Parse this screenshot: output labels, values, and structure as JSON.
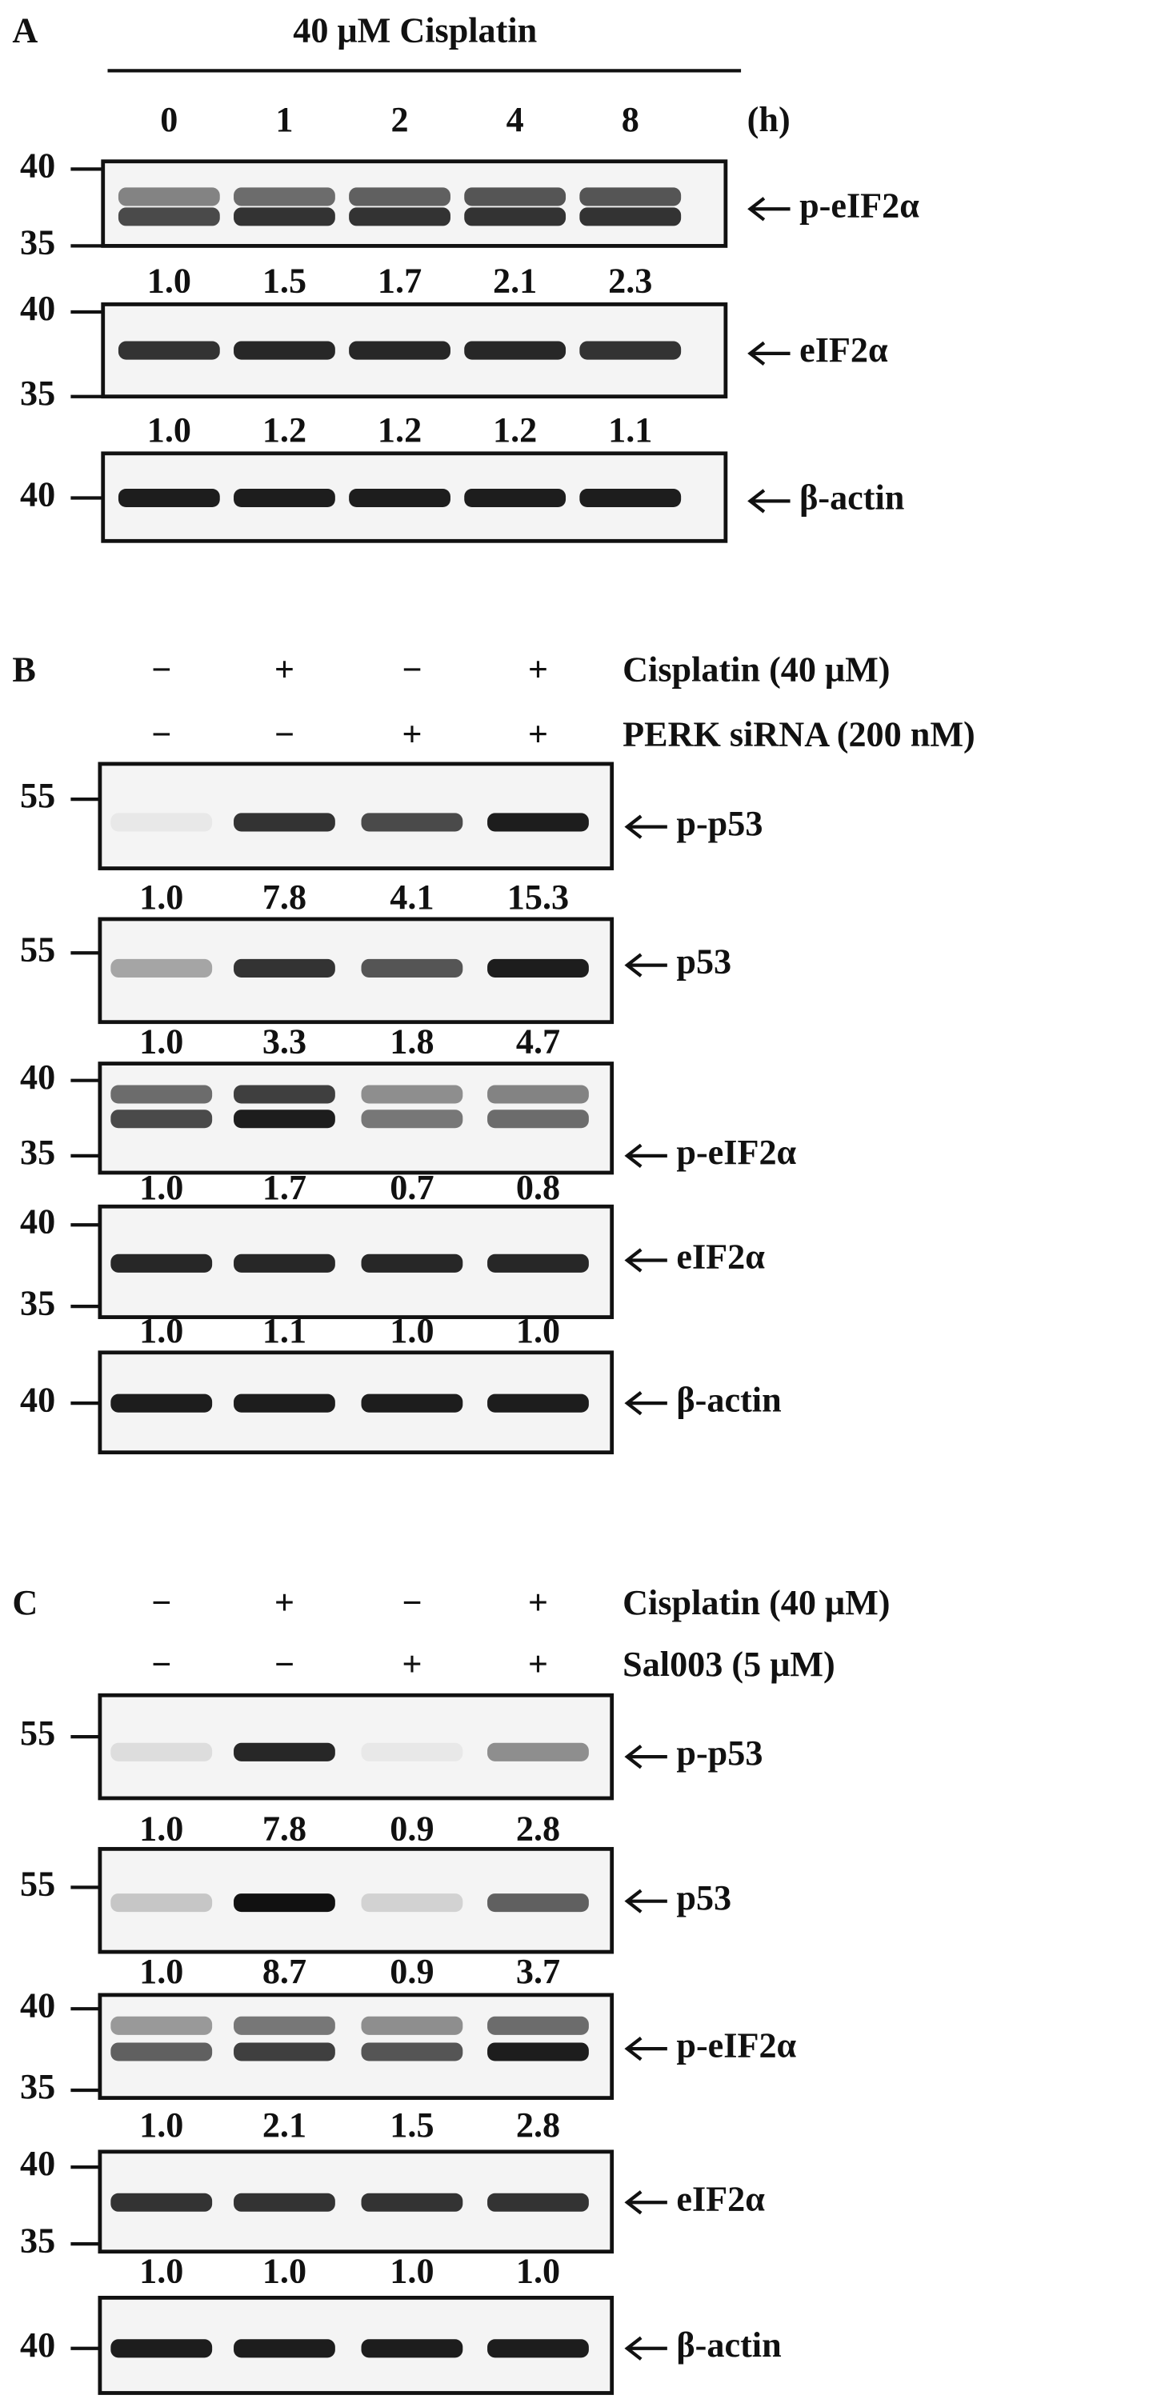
{
  "panels": [
    {
      "label": "A",
      "title": "40 μM Cisplatin",
      "lanes": [
        "0",
        "1",
        "2",
        "4",
        "8"
      ],
      "lane_unit": "(h)",
      "blots": [
        {
          "name": "p-eIF2α",
          "markers": [
            "40",
            "35"
          ],
          "quant": [
            "1.0",
            "1.5",
            "1.7",
            "2.1",
            "2.3"
          ]
        },
        {
          "name": "eIF2α",
          "markers": [
            "40",
            "35"
          ],
          "quant": [
            "1.0",
            "1.2",
            "1.2",
            "1.2",
            "1.1"
          ]
        },
        {
          "name": "β-actin",
          "markers": [
            "40"
          ]
        }
      ]
    },
    {
      "label": "B",
      "treatments": [
        {
          "signs": [
            "−",
            "+",
            "−",
            "+"
          ],
          "name": "Cisplatin (40 μM)"
        },
        {
          "signs": [
            "−",
            "−",
            "+",
            "+"
          ],
          "name": "PERK siRNA (200 nM)"
        }
      ],
      "blots": [
        {
          "name": "p-p53",
          "markers": [
            "55"
          ],
          "quant": [
            "1.0",
            "7.8",
            "4.1",
            "15.3"
          ]
        },
        {
          "name": "p53",
          "markers": [
            "55"
          ],
          "quant": [
            "1.0",
            "3.3",
            "1.8",
            "4.7"
          ]
        },
        {
          "name": "p-eIF2α",
          "markers": [
            "40",
            "35"
          ],
          "quant": [
            "1.0",
            "1.7",
            "0.7",
            "0.8"
          ]
        },
        {
          "name": "eIF2α",
          "markers": [
            "40",
            "35"
          ],
          "quant": [
            "1.0",
            "1.1",
            "1.0",
            "1.0"
          ]
        },
        {
          "name": "β-actin",
          "markers": [
            "40"
          ]
        }
      ]
    },
    {
      "label": "C",
      "treatments": [
        {
          "signs": [
            "−",
            "+",
            "−",
            "+"
          ],
          "name": "Cisplatin (40 μM)"
        },
        {
          "signs": [
            "−",
            "−",
            "+",
            "+"
          ],
          "name": "Sal003 (5 μM)"
        }
      ],
      "blots": [
        {
          "name": "p-p53",
          "markers": [
            "55"
          ],
          "quant": [
            "1.0",
            "7.8",
            "0.9",
            "2.8"
          ]
        },
        {
          "name": "p53",
          "markers": [
            "55"
          ],
          "quant": [
            "1.0",
            "8.7",
            "0.9",
            "3.7"
          ]
        },
        {
          "name": "p-eIF2α",
          "markers": [
            "40",
            "35"
          ],
          "quant": [
            "1.0",
            "2.1",
            "1.5",
            "2.8"
          ]
        },
        {
          "name": "eIF2α",
          "markers": [
            "40",
            "35"
          ],
          "quant": [
            "1.0",
            "1.0",
            "1.0",
            "1.0"
          ]
        },
        {
          "name": "β-actin",
          "markers": [
            "40"
          ]
        }
      ]
    }
  ]
}
